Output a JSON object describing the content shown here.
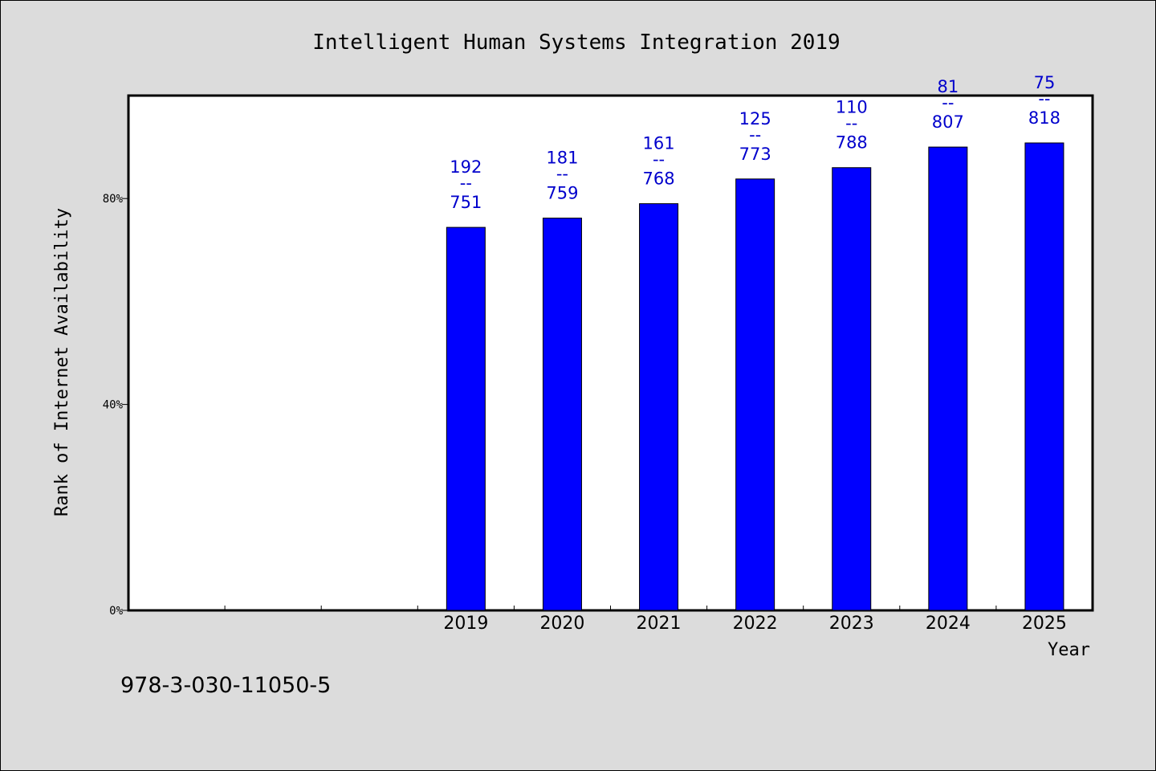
{
  "chart_data": {
    "type": "bar",
    "title": "Intelligent Human Systems Integration 2019",
    "xlabel": "Year",
    "ylabel": "Rank of Internet Availability",
    "categories": [
      "",
      "",
      "",
      "2019",
      "2020",
      "2021",
      "2022",
      "2023",
      "2024",
      "2025"
    ],
    "values": [
      null,
      null,
      null,
      74.4,
      76.2,
      79.0,
      83.8,
      86.0,
      90.0,
      90.8
    ],
    "data_labels": [
      {
        "rank": "",
        "sep": "",
        "total": ""
      },
      {
        "rank": "",
        "sep": "",
        "total": ""
      },
      {
        "rank": "",
        "sep": "",
        "total": ""
      },
      {
        "rank": "192",
        "sep": "--",
        "total": "751"
      },
      {
        "rank": "181",
        "sep": "--",
        "total": "759"
      },
      {
        "rank": "161",
        "sep": "--",
        "total": "768"
      },
      {
        "rank": "125",
        "sep": "--",
        "total": "773"
      },
      {
        "rank": "110",
        "sep": "--",
        "total": "788"
      },
      {
        "rank": "81",
        "sep": "--",
        "total": "807"
      },
      {
        "rank": "75",
        "sep": "--",
        "total": "818"
      }
    ],
    "ylim": [
      0,
      100
    ],
    "yticks": [
      0,
      40,
      80
    ],
    "ytick_labels": [
      "0%",
      "40%",
      "80%"
    ],
    "grid": false,
    "legend": "none",
    "bar_color": "#0000ff",
    "label_color": "#0000cc"
  },
  "footer": {
    "isbn": "978-3-030-11050-5"
  }
}
